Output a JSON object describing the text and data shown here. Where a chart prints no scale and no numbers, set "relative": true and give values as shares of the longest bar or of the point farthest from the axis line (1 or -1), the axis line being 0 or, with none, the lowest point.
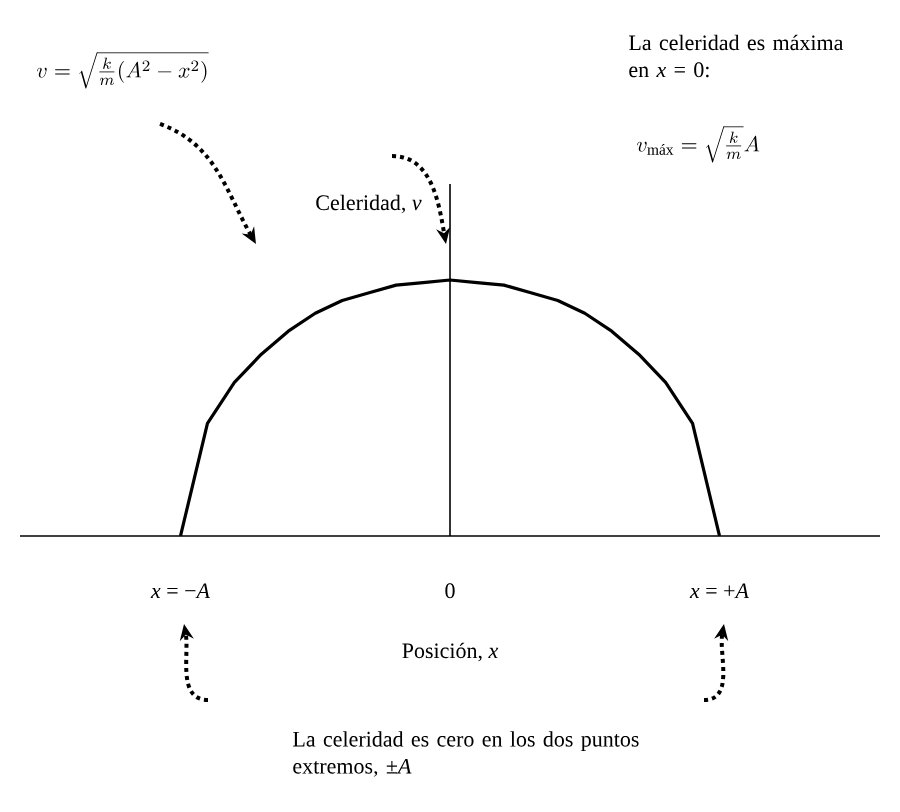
{
  "chart_data": {
    "type": "line",
    "relative": true,
    "xlabel": "Posición, *x*",
    "ylabel": "Celeridad, *v*",
    "categories": [
      "*x* = −*A*",
      null,
      null,
      null,
      null,
      null,
      null,
      null,
      null,
      null,
      "0",
      null,
      null,
      null,
      null,
      null,
      null,
      null,
      null,
      null,
      "*x* = +*A*"
    ],
    "series": [
      {
        "color": "#000000",
        "values": [
          0,
          0.44,
          0.6,
          0.71,
          0.8,
          0.87,
          0.92,
          0.95,
          0.98,
          0.99,
          1,
          0.99,
          0.98,
          0.95,
          0.92,
          0.87,
          0.8,
          0.71,
          0.6,
          0.44,
          0
        ]
      }
    ],
    "annotations": [
      "v=\\sqrt{\\frac{k}{m}(A^{2}-x^{2})}",
      "La celeridad es máxima en *x* = 0:",
      "v_{\\mathrm{máx}}=\\sqrt{\\frac{k}{m}}A",
      "La celeridad es cero en los dos puntos extremos, ±*A*"
    ]
  }
}
